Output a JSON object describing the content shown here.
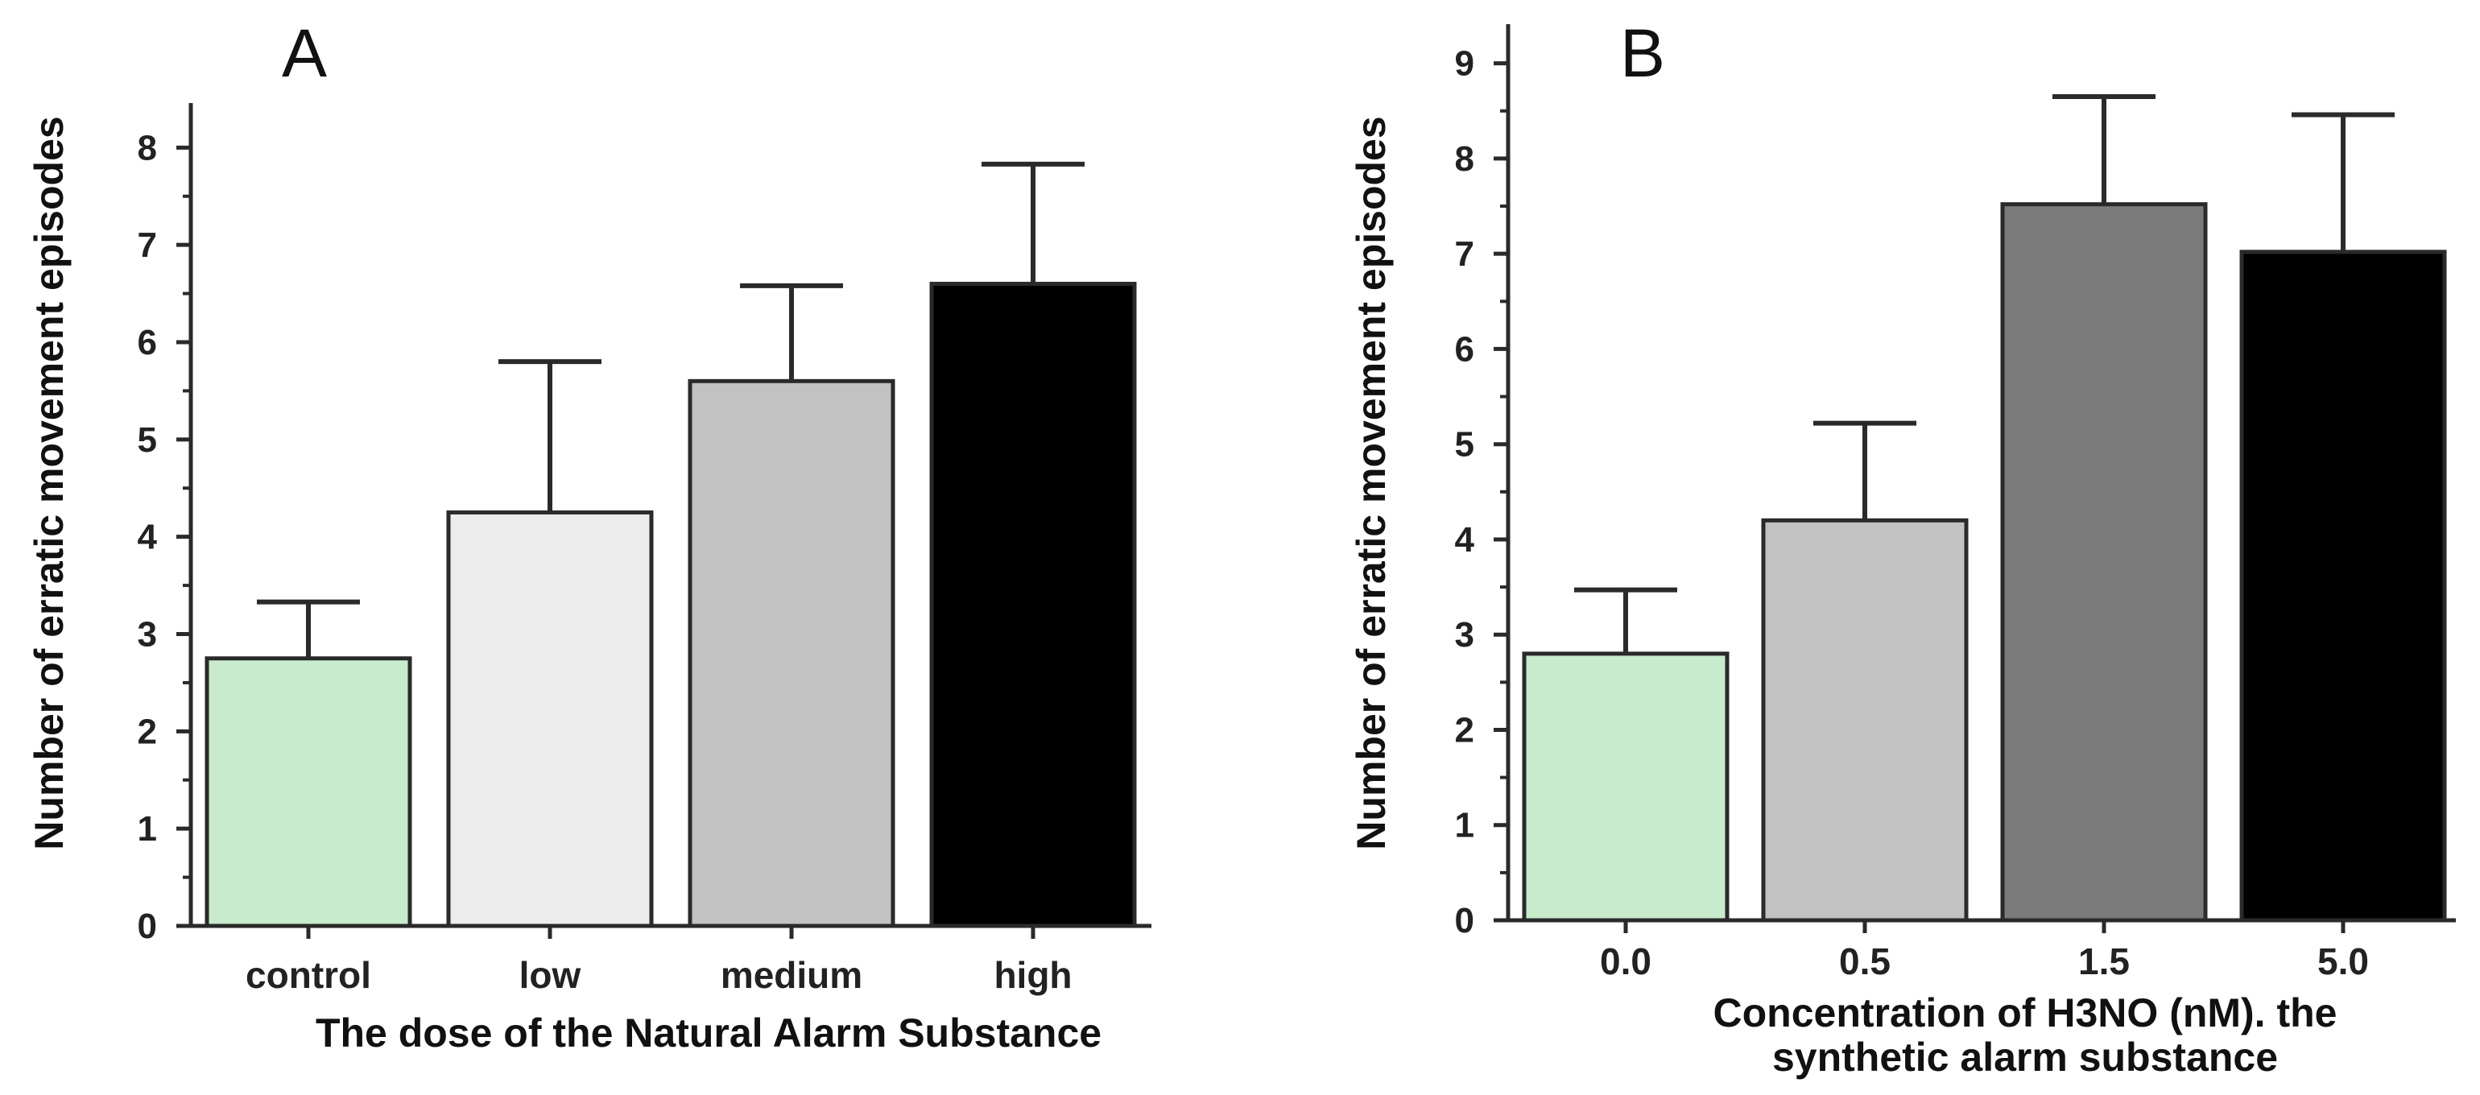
{
  "chart_data": [
    {
      "type": "bar",
      "panel_label": "A",
      "title": "",
      "categories": [
        "control",
        "low",
        "medium",
        "high"
      ],
      "values": [
        2.75,
        4.25,
        5.6,
        6.6
      ],
      "errors_upper": [
        3.33,
        5.8,
        6.58,
        7.83
      ],
      "colors": [
        "#c7ebcb",
        "#ececec",
        "#c2c2c2",
        "#000000"
      ],
      "ylabel": "Number of erratic  movement episodes",
      "xlabel": "The dose of the Natural Alarm  Substance",
      "xlabel_lines": [
        "The dose of the Natural Alarm  Substance"
      ],
      "ylim": [
        0,
        8.4
      ],
      "yticks": [
        0,
        1,
        2,
        3,
        4,
        5,
        6,
        7,
        8
      ],
      "ytick_labels": [
        "0",
        "1",
        "2",
        "3",
        "4",
        "5",
        "6",
        "7",
        "8"
      ]
    },
    {
      "type": "bar",
      "panel_label": "B",
      "title": "",
      "categories": [
        "0.0",
        "0.5",
        "1.5",
        "5.0"
      ],
      "values": [
        2.8,
        4.2,
        7.52,
        7.02
      ],
      "errors_upper": [
        3.47,
        5.22,
        8.65,
        8.46
      ],
      "colors": [
        "#c7ebcb",
        "#c2c2c2",
        "#7a7a7a",
        "#000000"
      ],
      "ylabel": "Number of erratic  movement episodes",
      "xlabel": "Concentration of H3NO (nM). the synthetic alarm  substance",
      "xlabel_lines": [
        "Concentration of H3NO (nM). the",
        "synthetic alarm  substance"
      ],
      "ylim": [
        0,
        9.2
      ],
      "yticks": [
        0,
        1,
        2,
        3,
        4,
        5,
        6,
        7,
        8,
        9
      ],
      "ytick_labels": [
        "0",
        "1",
        "2",
        "3",
        "4",
        "5",
        "6",
        "7",
        "8",
        "9"
      ]
    }
  ]
}
